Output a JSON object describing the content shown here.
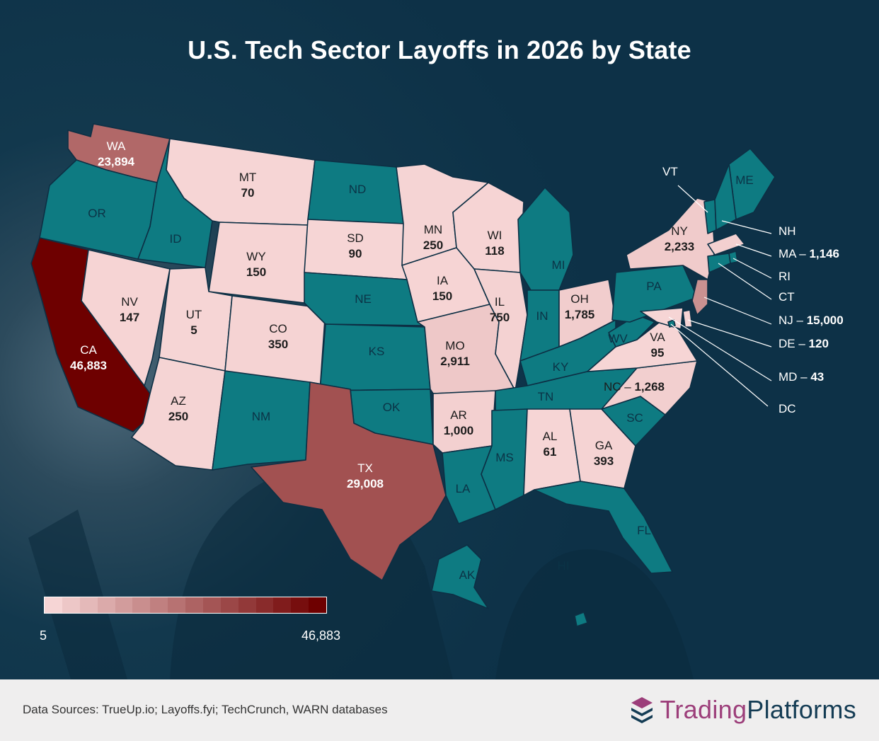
{
  "title": "U.S. Tech Sector Layoffs in 2026 by State",
  "colors": {
    "background": "#0d3147",
    "no_data": "#0e7b82",
    "scale_min": "#f6d5d5",
    "scale_max": "#6e0000",
    "footer": "#efeeee",
    "brand_trading": "#9c3e7a",
    "brand_platforms": "#143c54"
  },
  "map_data": {
    "metric": "Tech sector layoffs in 2026",
    "scale": {
      "min": 5,
      "max": 46883,
      "min_label": "5",
      "max_label": "46,883"
    },
    "states": [
      {
        "id": "WA",
        "label": "WA",
        "display": "23,894",
        "value": 23894
      },
      {
        "id": "OR",
        "label": "OR",
        "display": null,
        "value": null
      },
      {
        "id": "CA",
        "label": "CA",
        "display": "46,883",
        "value": 46883
      },
      {
        "id": "ID",
        "label": "ID",
        "display": null,
        "value": null
      },
      {
        "id": "NV",
        "label": "NV",
        "display": "147",
        "value": 147
      },
      {
        "id": "MT",
        "label": "MT",
        "display": "70",
        "value": 70
      },
      {
        "id": "WY",
        "label": "WY",
        "display": "150",
        "value": 150
      },
      {
        "id": "UT",
        "label": "UT",
        "display": "5",
        "value": 5
      },
      {
        "id": "AZ",
        "label": "AZ",
        "display": "250",
        "value": 250
      },
      {
        "id": "CO",
        "label": "CO",
        "display": "350",
        "value": 350
      },
      {
        "id": "NM",
        "label": "NM",
        "display": null,
        "value": null
      },
      {
        "id": "ND",
        "label": "ND",
        "display": null,
        "value": null
      },
      {
        "id": "SD",
        "label": "SD",
        "display": "90",
        "value": 90
      },
      {
        "id": "NE",
        "label": "NE",
        "display": null,
        "value": null
      },
      {
        "id": "KS",
        "label": "KS",
        "display": null,
        "value": null
      },
      {
        "id": "OK",
        "label": "OK",
        "display": null,
        "value": null
      },
      {
        "id": "TX",
        "label": "TX",
        "display": "29,008",
        "value": 29008
      },
      {
        "id": "MN",
        "label": "MN",
        "display": "250",
        "value": 250
      },
      {
        "id": "IA",
        "label": "IA",
        "display": "150",
        "value": 150
      },
      {
        "id": "MO",
        "label": "MO",
        "display": "2,911",
        "value": 2911
      },
      {
        "id": "AR",
        "label": "AR",
        "display": "1,000",
        "value": 1000
      },
      {
        "id": "LA",
        "label": "LA",
        "display": null,
        "value": null
      },
      {
        "id": "WI",
        "label": "WI",
        "display": "118",
        "value": 118
      },
      {
        "id": "IL",
        "label": "IL",
        "display": "750",
        "value": 750
      },
      {
        "id": "MI",
        "label": "MI",
        "display": null,
        "value": null
      },
      {
        "id": "IN",
        "label": "IN",
        "display": null,
        "value": null
      },
      {
        "id": "OH",
        "label": "OH",
        "display": "1,785",
        "value": 1785
      },
      {
        "id": "KY",
        "label": "KY",
        "display": null,
        "value": null
      },
      {
        "id": "TN",
        "label": "TN",
        "display": null,
        "value": null
      },
      {
        "id": "MS",
        "label": "MS",
        "display": null,
        "value": null
      },
      {
        "id": "AL",
        "label": "AL",
        "display": "61",
        "value": 61
      },
      {
        "id": "GA",
        "label": "GA",
        "display": "393",
        "value": 393
      },
      {
        "id": "FL",
        "label": "FL",
        "display": null,
        "value": null
      },
      {
        "id": "SC",
        "label": "SC",
        "display": null,
        "value": null
      },
      {
        "id": "NC",
        "label": "NC",
        "display": "1,268",
        "value": 1268
      },
      {
        "id": "VA",
        "label": "VA",
        "display": "95",
        "value": 95
      },
      {
        "id": "WV",
        "label": "WV",
        "display": null,
        "value": null
      },
      {
        "id": "PA",
        "label": "PA",
        "display": null,
        "value": null
      },
      {
        "id": "NY",
        "label": "NY",
        "display": "2,233",
        "value": 2233
      },
      {
        "id": "ME",
        "label": "ME",
        "display": null,
        "value": null
      },
      {
        "id": "AK",
        "label": "AK",
        "display": null,
        "value": null
      },
      {
        "id": "HI",
        "label": "HI",
        "display": null,
        "value": null
      }
    ],
    "callouts": [
      {
        "id": "VT",
        "label": "VT",
        "display": null,
        "value": null
      },
      {
        "id": "NH",
        "label": "NH",
        "display": null,
        "value": null
      },
      {
        "id": "MA",
        "label": "MA",
        "display": "1,146",
        "value": 1146
      },
      {
        "id": "RI",
        "label": "RI",
        "display": null,
        "value": null
      },
      {
        "id": "CT",
        "label": "CT",
        "display": null,
        "value": null
      },
      {
        "id": "NJ",
        "label": "NJ",
        "display": "15,000",
        "value": 15000
      },
      {
        "id": "DE",
        "label": "DE",
        "display": "120",
        "value": 120
      },
      {
        "id": "MD",
        "label": "MD",
        "display": "43",
        "value": 43
      },
      {
        "id": "DC",
        "label": "DC",
        "display": null,
        "value": null
      }
    ]
  },
  "footer": {
    "source": "Data Sources: TrueUp.io; Layoffs.fyi; TechCrunch, WARN databases",
    "brand_part1": "Trading",
    "brand_part2": "Platforms",
    "logo_icon": "stacked-layers-icon"
  }
}
